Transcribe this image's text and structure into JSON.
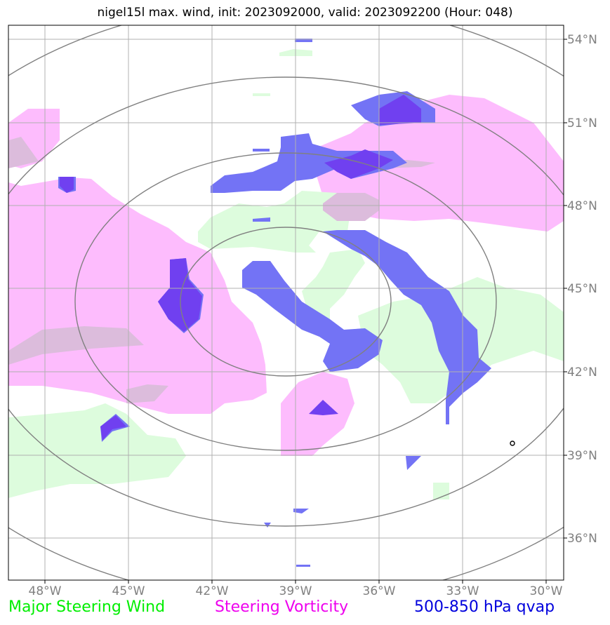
{
  "title": "nigel15l max. wind, init: 2023092000, valid: 2023092200 (Hour: 048)",
  "map": {
    "lon_labels": [
      "48°W",
      "45°W",
      "42°W",
      "39°W",
      "36°W",
      "33°W",
      "30°W"
    ],
    "lat_labels": [
      "54°N",
      "51°N",
      "48°N",
      "45°N",
      "42°N",
      "39°N",
      "36°N"
    ],
    "colors": {
      "wind": "#ddfcdd",
      "vorticity": "#fdbcfd",
      "qvap": "#7373f5",
      "qvap_dark": "#7040f0",
      "overlap": "#dcbcdc",
      "range_ring": "#808080",
      "grid": "#b0b0b0"
    }
  },
  "legend": {
    "wind": {
      "label": "Major Steering Wind",
      "color": "#00ee00"
    },
    "vorticity": {
      "label": "Steering Vorticity",
      "color": "#ee00ee"
    },
    "qvap": {
      "label": "500-850 hPa qvap",
      "color": "#0000dd"
    }
  }
}
